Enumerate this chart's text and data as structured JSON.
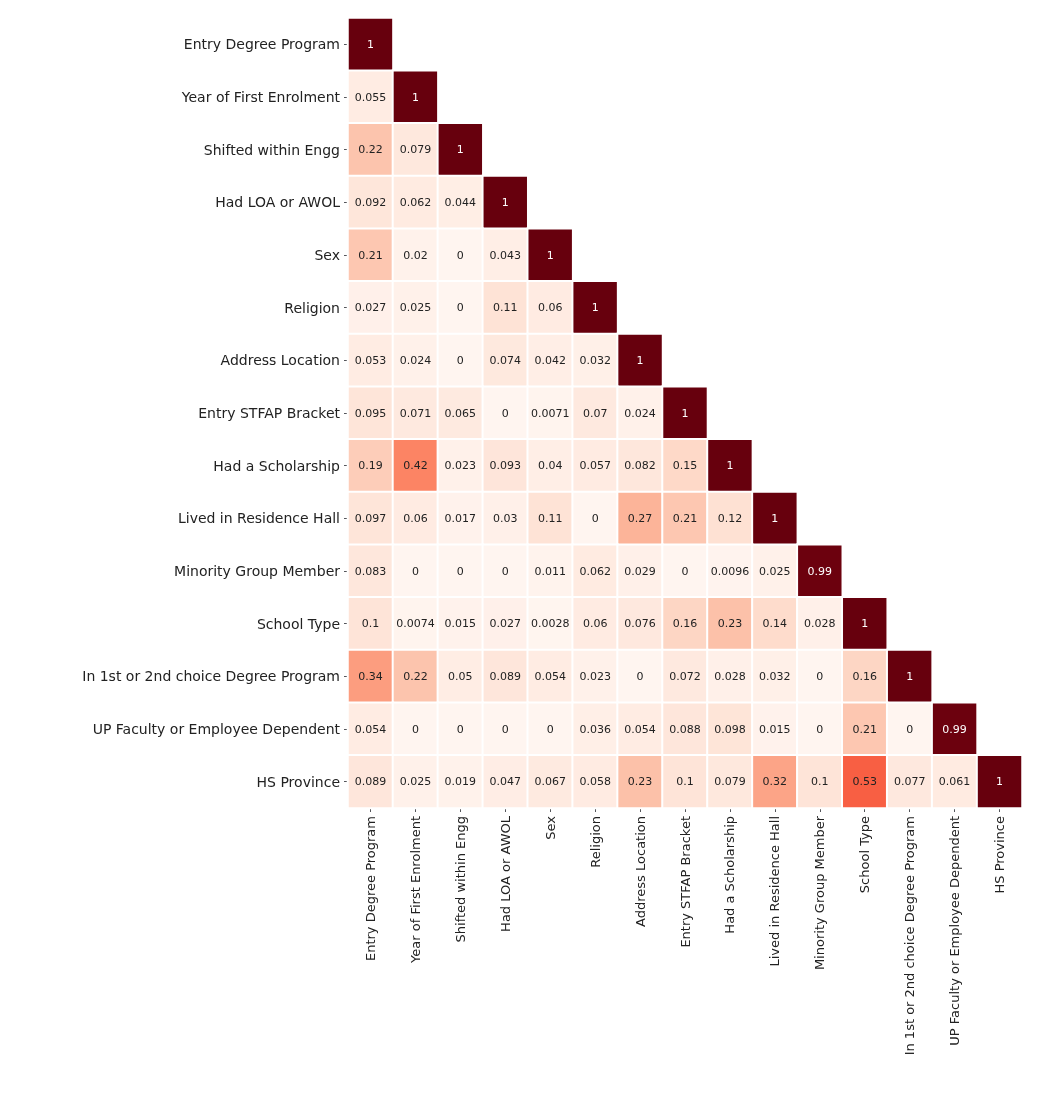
{
  "chart_data": {
    "type": "heatmap",
    "categories": [
      "Entry Degree Program",
      "Year of First Enrolment",
      "Shifted within Engg",
      "Had LOA or AWOL",
      "Sex",
      "Religion",
      "Address Location",
      "Entry STFAP Bracket",
      "Had a Scholarship",
      "Lived in Residence Hall",
      "Minority Group Member",
      "School Type",
      "In 1st or 2nd choice Degree Program",
      "UP Faculty or Employee Dependent",
      "HS Province"
    ],
    "y_categories": [
      "Entry Degree Program",
      "Year of First Enrolment",
      "Shifted within Engg",
      "Had LOA or AWOL",
      "Sex",
      "Religion",
      "Address Location",
      "Entry STFAP Bracket",
      "Had a Scholarship",
      "Lived in Residence Hall",
      "Minority Group Member",
      "School Type",
      "In 1st or 2nd choice Degree Program",
      "UP Faculty or Employee Dependent",
      "HS Province"
    ],
    "cells": [
      [
        1,
        null,
        null,
        null,
        null,
        null,
        null,
        null,
        null,
        null,
        null,
        null,
        null,
        null,
        null
      ],
      [
        0.055,
        1,
        null,
        null,
        null,
        null,
        null,
        null,
        null,
        null,
        null,
        null,
        null,
        null,
        null
      ],
      [
        0.22,
        0.079,
        1,
        null,
        null,
        null,
        null,
        null,
        null,
        null,
        null,
        null,
        null,
        null,
        null
      ],
      [
        0.092,
        0.062,
        0.044,
        1,
        null,
        null,
        null,
        null,
        null,
        null,
        null,
        null,
        null,
        null,
        null
      ],
      [
        0.21,
        0.02,
        0,
        0.043,
        1,
        null,
        null,
        null,
        null,
        null,
        null,
        null,
        null,
        null,
        null
      ],
      [
        0.027,
        0.025,
        0,
        0.11,
        0.06,
        1,
        null,
        null,
        null,
        null,
        null,
        null,
        null,
        null,
        null
      ],
      [
        0.053,
        0.024,
        0,
        0.074,
        0.042,
        0.032,
        1,
        null,
        null,
        null,
        null,
        null,
        null,
        null,
        null
      ],
      [
        0.095,
        0.071,
        0.065,
        0,
        0.0071,
        0.07,
        0.024,
        1,
        null,
        null,
        null,
        null,
        null,
        null,
        null
      ],
      [
        0.19,
        0.42,
        0.023,
        0.093,
        0.04,
        0.057,
        0.082,
        0.15,
        1,
        null,
        null,
        null,
        null,
        null,
        null
      ],
      [
        0.097,
        0.06,
        0.017,
        0.03,
        0.11,
        0,
        0.27,
        0.21,
        0.12,
        1,
        null,
        null,
        null,
        null,
        null
      ],
      [
        0.083,
        0,
        0,
        0,
        0.011,
        0.062,
        0.029,
        0,
        0.0096,
        0.025,
        0.99,
        null,
        null,
        null,
        null
      ],
      [
        0.1,
        0.0074,
        0.015,
        0.027,
        0.0028,
        0.06,
        0.076,
        0.16,
        0.23,
        0.14,
        0.028,
        1,
        null,
        null,
        null
      ],
      [
        0.34,
        0.22,
        0.05,
        0.089,
        0.054,
        0.023,
        0,
        0.072,
        0.028,
        0.032,
        0,
        0.16,
        1,
        null,
        null
      ],
      [
        0.054,
        0,
        0,
        0,
        0,
        0.036,
        0.054,
        0.088,
        0.098,
        0.015,
        0,
        0.21,
        0,
        0.99,
        null
      ],
      [
        0.089,
        0.025,
        0.019,
        0.047,
        0.067,
        0.058,
        0.23,
        0.1,
        0.079,
        0.32,
        0.1,
        0.53,
        0.077,
        0.061,
        1
      ]
    ],
    "data_labels": true
  }
}
